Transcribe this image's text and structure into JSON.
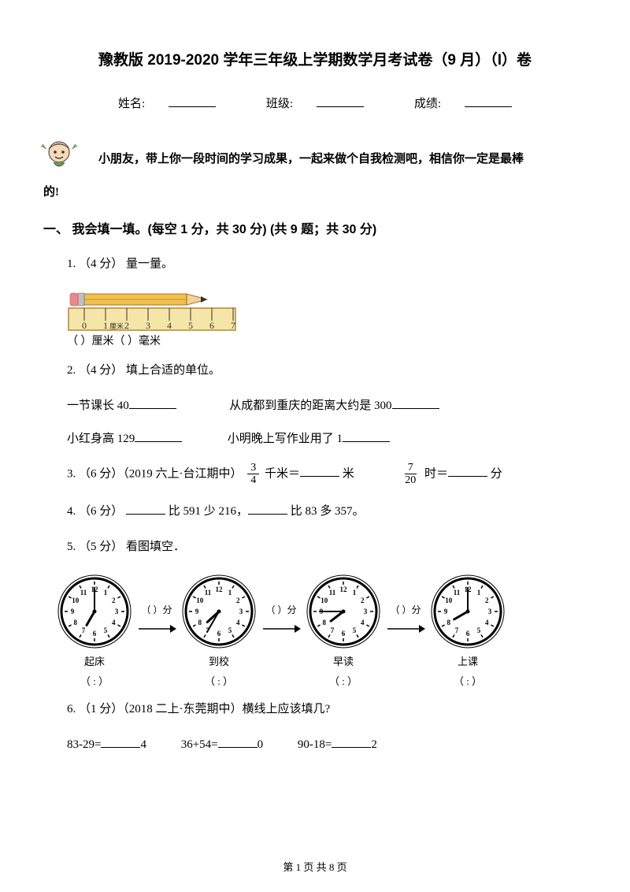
{
  "title": "豫教版 2019-2020 学年三年级上学期数学月考试卷（9 月）（I）卷",
  "info": {
    "name_label": "姓名:",
    "class_label": "班级:",
    "score_label": "成绩:"
  },
  "intro": {
    "line1": "小朋友，带上你一段时间的学习成果，一起来做个自我检测吧，相信你一定是最棒",
    "line2": "的!"
  },
  "section1": {
    "header": "一、 我会填一填。(每空 1 分，共 30 分)  (共 9 题；共 30 分)",
    "q1": {
      "prefix": "1. （4 分） 量一量。",
      "ruler_caption_left": "（     ）厘米（",
      "ruler_caption_right": "）毫米"
    },
    "q2": {
      "prefix": "2. （4 分） 填上合适的单位。",
      "row1a": "一节课长 40",
      "row1b": "从成都到重庆的距离大约是 300",
      "row2a": "小红身高 129",
      "row2b": "小明晚上写作业用了 1"
    },
    "q3": {
      "prefix": "3. （6 分）（2019 六上·台江期中）",
      "frac1_num": "3",
      "frac1_den": "4",
      "mid1": "千米＝",
      "unit1": "米",
      "frac2_num": "7",
      "frac2_den": "20",
      "mid2": "时＝",
      "unit2": "分"
    },
    "q4": {
      "text_a": "4. （6 分） ",
      "text_b": "比 591 少 216，",
      "text_c": "比 83 多 357。"
    },
    "q5": {
      "prefix": "5. （5 分） 看图填空．",
      "clocks": [
        {
          "label": "起床",
          "h": 7,
          "m": 0
        },
        {
          "label": "到校",
          "h": 7,
          "m": 35
        },
        {
          "label": "早读",
          "h": 7,
          "m": 45
        },
        {
          "label": "上课",
          "h": 8,
          "m": 0
        }
      ],
      "gap_text": "（   ）分",
      "time_text": "（    :    ）"
    },
    "q6": {
      "prefix": "6. （1 分）（2018 二上·东莞期中）横线上应该填几?",
      "eq1a": "83-29=",
      "eq1b": "4",
      "eq2a": "36+54=",
      "eq2b": "0",
      "eq3a": "90-18=",
      "eq3b": "2"
    }
  },
  "footer": "第 1 页 共 8 页",
  "colors": {
    "text": "#000000",
    "bg": "#ffffff",
    "ruler_body": "#f5e6a8",
    "ruler_edge": "#b0883a",
    "pencil_yellow": "#f2c14e",
    "pencil_tip": "#f4d19b",
    "pencil_lead": "#333333",
    "pencil_ferrule": "#c0c0c0",
    "pencil_eraser": "#e88",
    "avatar_skin": "#f7d9b7",
    "avatar_hat": "#4a7a3a",
    "clock_face": "#ffffff",
    "clock_ring": "#333333"
  }
}
